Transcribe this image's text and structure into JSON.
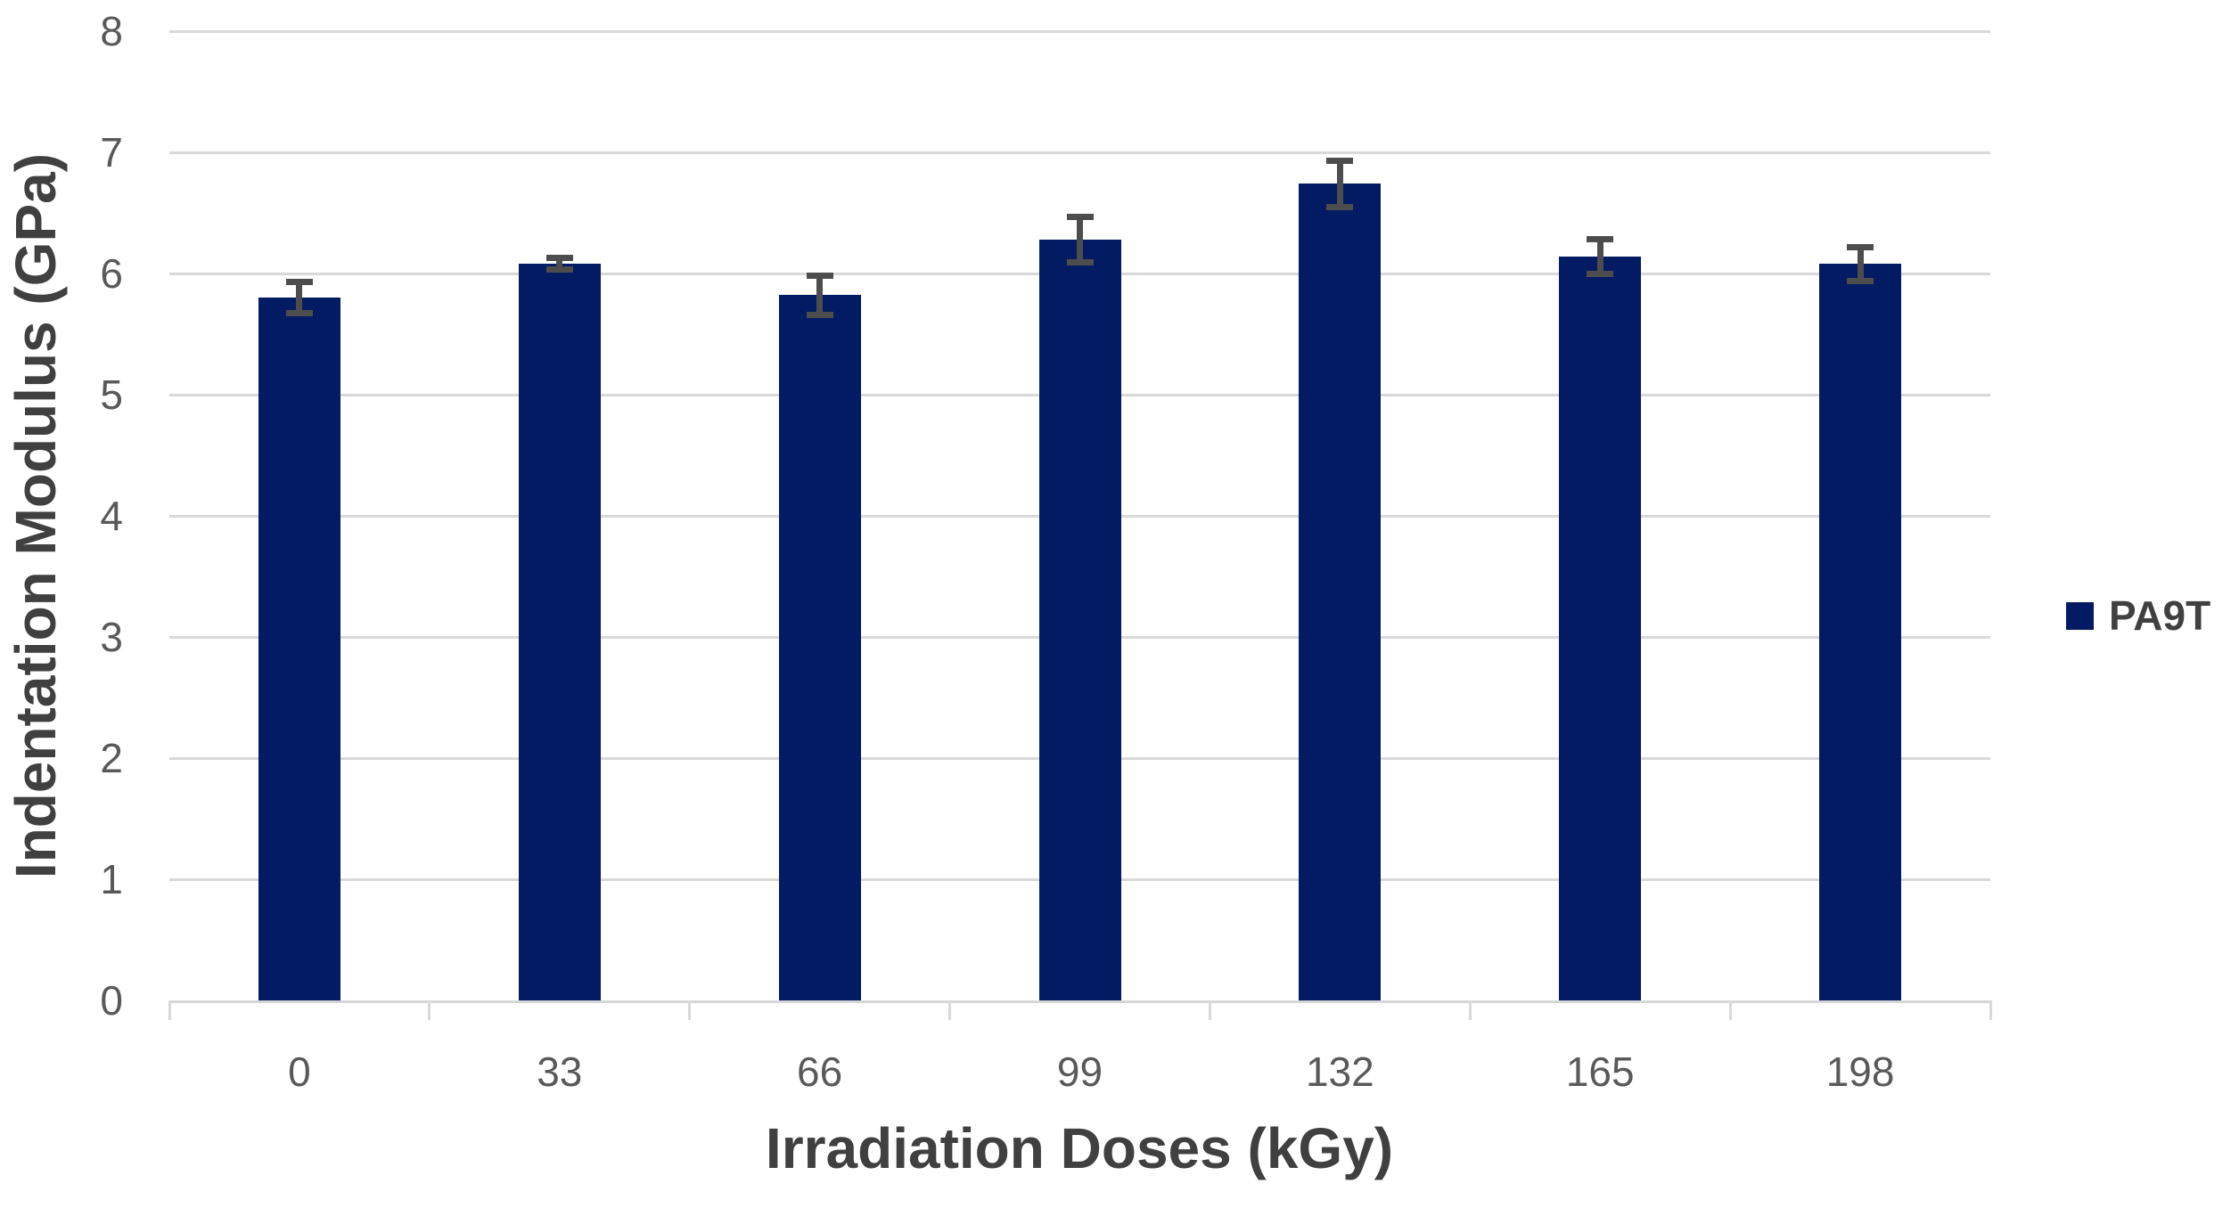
{
  "chart_data": {
    "type": "bar",
    "title": "",
    "xlabel": "Irradiation Doses (kGy)",
    "ylabel": "Indentation Modulus (GPa)",
    "categories": [
      "0",
      "33",
      "66",
      "99",
      "132",
      "165",
      "198"
    ],
    "series": [
      {
        "name": "PA9T",
        "values": [
          5.8,
          6.08,
          5.82,
          6.28,
          6.74,
          6.14,
          6.08
        ],
        "error_bars": [
          0.13,
          0.05,
          0.16,
          0.19,
          0.19,
          0.14,
          0.14
        ]
      }
    ],
    "ylim": [
      0,
      8
    ],
    "yticks": [
      0,
      1,
      2,
      3,
      4,
      5,
      6,
      7,
      8
    ],
    "grid": true,
    "legend_position": "right",
    "colors": {
      "bar": "#021B62",
      "gridline": "#D9D9D9",
      "axis_line": "#D6D6D6",
      "tick_label": "#595959",
      "axis_title": "#404040",
      "error_bar": "#4D4D4D",
      "background": "#FFFFFF"
    }
  },
  "legend": {
    "items": [
      {
        "label": "PA9T",
        "color": "#021B62"
      }
    ]
  }
}
